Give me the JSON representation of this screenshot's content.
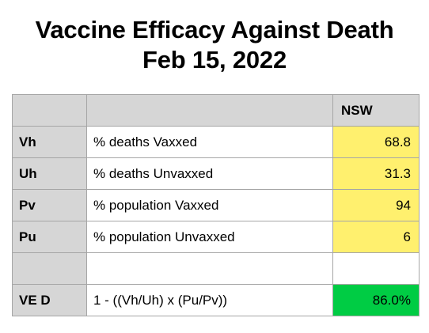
{
  "title": {
    "line1": "Vaccine Efficacy Against Death",
    "line2": "Feb 15, 2022"
  },
  "table": {
    "header": {
      "code": "",
      "description": "",
      "column": "NSW"
    },
    "rows": [
      {
        "code": "Vh",
        "description": "% deaths Vaxxed",
        "value": "68.8"
      },
      {
        "code": "Uh",
        "description": "% deaths Unvaxxed",
        "value": "31.3"
      },
      {
        "code": "Pv",
        "description": "% population Vaxxed",
        "value": "94"
      },
      {
        "code": "Pu",
        "description": "% population Unvaxxed",
        "value": "6"
      },
      {
        "code": "",
        "description": "",
        "value": ""
      },
      {
        "code": "VE D",
        "description": "1 - ((Vh/Uh) x (Pu/Pv))",
        "value": "86.0%"
      }
    ]
  },
  "colors": {
    "header_gray": "#d6d6d6",
    "input_yellow": "#fff06e",
    "result_green": "#00cc44"
  }
}
